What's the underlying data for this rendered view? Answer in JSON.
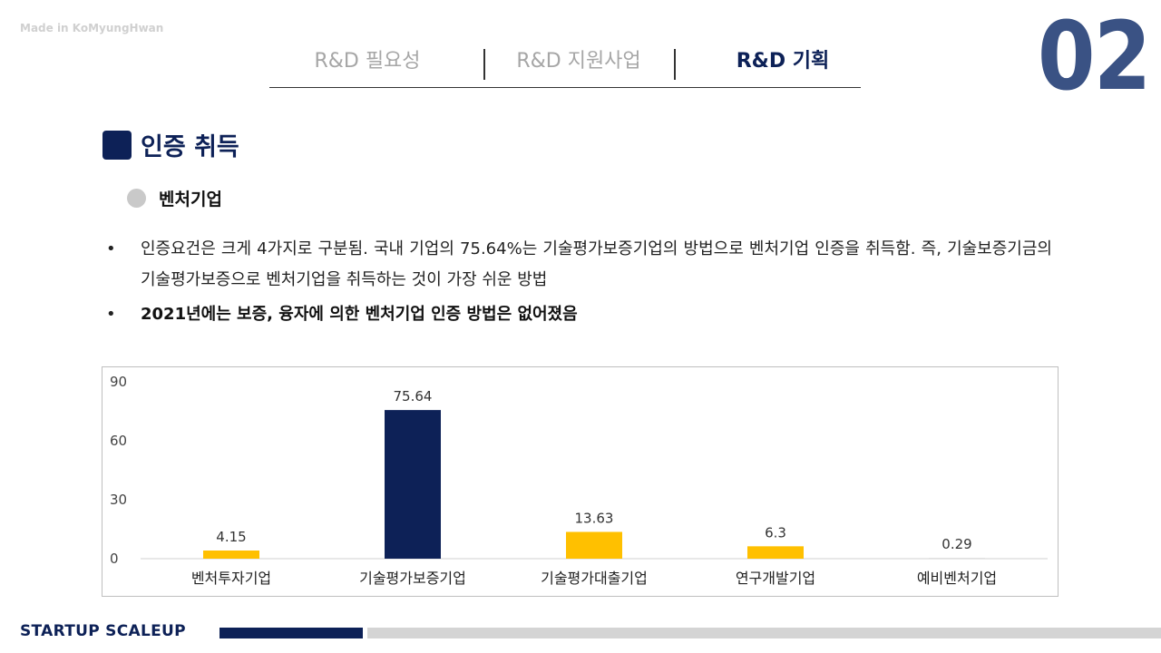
{
  "watermark": "Made in KoMyungHwan",
  "nav": {
    "tabs": [
      {
        "label": "R&D 필요성",
        "active": false
      },
      {
        "label": "R&D 지원사업",
        "active": false
      },
      {
        "label": "R&D 기획",
        "active": true
      }
    ]
  },
  "slide_number": "02",
  "section": {
    "title": "인증 취득"
  },
  "subsection": {
    "title": "벤처기업"
  },
  "bullets": [
    {
      "text": "인증요건은 크게 4가지로 구분됨. 국내 기업의 75.64%는 기술평가보증기업의 방법으로 벤처기업 인증을 취득함. 즉, 기술보증기금의 기술평가보증으로 벤처기업을 취득하는 것이 가장 쉬운 방법",
      "bold": false
    },
    {
      "text": "2021년에는 보증, 융자에 의한 벤처기업 인증 방법은 없어졌음",
      "bold": true
    }
  ],
  "chart_data": {
    "type": "bar",
    "categories": [
      "벤처투자기업",
      "기술평가보증기업",
      "기술평가대출기업",
      "연구개발기업",
      "예비벤처기업"
    ],
    "values": [
      4.15,
      75.64,
      13.63,
      6.3,
      0.29
    ],
    "data_labels": [
      "4.15",
      "75.64",
      "13.63",
      "6.3",
      "0.29"
    ],
    "ylim": [
      0,
      90
    ],
    "yticks": [
      0,
      30,
      60,
      90
    ],
    "highlight_index": 1,
    "colors": {
      "bar": "#ffc000",
      "highlight": "#0d2157",
      "highlight_label": "#c00000",
      "label": "#333333"
    },
    "grid": false,
    "legend": "none"
  },
  "footer": {
    "text": "STARTUP SCALEUP"
  }
}
